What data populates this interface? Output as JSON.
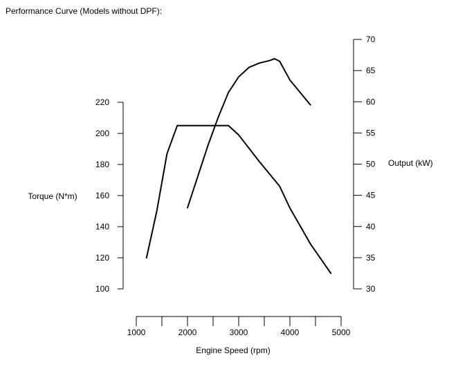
{
  "chart_data": {
    "type": "line",
    "title": "Performance Curve (Models without DPF):",
    "xlabel": "Engine Speed (rpm)",
    "y_left_label": "Torque (N*m)",
    "y_right_label": "Output (kW)",
    "xlim": [
      1000,
      5000
    ],
    "y_left_lim": [
      100,
      220
    ],
    "y_right_lim": [
      30,
      70
    ],
    "x_ticks": [
      1000,
      1500,
      2000,
      2500,
      3000,
      3500,
      4000,
      4500,
      5000
    ],
    "x_tick_labels": [
      "1000",
      "2000",
      "3000",
      "4000",
      "5000"
    ],
    "y_left_ticks": [
      100,
      120,
      140,
      160,
      180,
      200,
      220
    ],
    "y_left_tick_labels": [
      "100",
      "120",
      "140",
      "160",
      "180",
      "200",
      "220"
    ],
    "y_right_ticks": [
      30,
      35,
      40,
      45,
      50,
      55,
      60,
      65,
      70
    ],
    "y_right_tick_labels": [
      "30",
      "35",
      "40",
      "45",
      "50",
      "55",
      "60",
      "65",
      "70"
    ],
    "grid": false,
    "series": [
      {
        "axis": "left",
        "color": "#000000",
        "x": [
          1200,
          1400,
          1600,
          1800,
          2000,
          2400,
          2800,
          3000,
          3400,
          3800,
          4000,
          4400,
          4800
        ],
        "y": [
          120,
          150,
          187,
          205,
          205,
          205,
          205,
          199,
          182,
          166,
          152,
          129,
          110
        ]
      },
      {
        "axis": "right",
        "color": "#000000",
        "x": [
          2000,
          2200,
          2400,
          2600,
          2800,
          3000,
          3200,
          3400,
          3600,
          3700,
          3800,
          4000,
          4400
        ],
        "y": [
          43,
          48,
          53,
          57.5,
          61.5,
          64,
          65.5,
          66.2,
          66.6,
          66.9,
          66.5,
          63.5,
          59.5
        ]
      }
    ]
  }
}
